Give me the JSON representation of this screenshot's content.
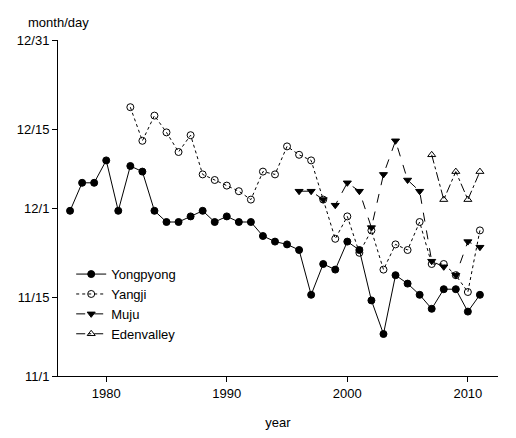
{
  "chart_data": {
    "type": "line",
    "y_label": "month/day",
    "x_label": "year",
    "xlim": [
      1976,
      2012.5
    ],
    "xticks": [
      1980,
      1990,
      2000,
      2010
    ],
    "ylim": [
      305,
      365
    ],
    "yticks": [
      {
        "value": 305,
        "label": "11/1"
      },
      {
        "value": 319,
        "label": "11/15"
      },
      {
        "value": 335,
        "label": "12/1"
      },
      {
        "value": 349,
        "label": "12/15"
      },
      {
        "value": 365,
        "label": "12/31"
      }
    ],
    "grid": false,
    "legend": "lower left",
    "series": [
      {
        "name": "Yongpyong",
        "color": "#000000",
        "marker": "circle",
        "line_style": "solid",
        "x": [
          1977,
          1978,
          1979,
          1980,
          1981,
          1982,
          1983,
          1984,
          1985,
          1986,
          1987,
          1988,
          1989,
          1990,
          1991,
          1992,
          1993,
          1994,
          1995,
          1996,
          1997,
          1998,
          1999,
          2000,
          2001,
          2002,
          2003,
          2004,
          2005,
          2006,
          2007,
          2008,
          2009,
          2010,
          2011
        ],
        "values": [
          334.5,
          339.5,
          339.5,
          343.5,
          334.5,
          342.5,
          341.5,
          334.5,
          332.5,
          332.5,
          333.5,
          334.5,
          332.5,
          333.5,
          332.5,
          332.5,
          330,
          329,
          328.5,
          327.5,
          319.5,
          325,
          324,
          329,
          327.5,
          318.5,
          312.5,
          323,
          321.5,
          319.5,
          317,
          320.5,
          320.5,
          316.5,
          319.5
        ]
      },
      {
        "name": "Yangji",
        "color": "#000000",
        "marker": "circle-open",
        "line_style": "dot",
        "x": [
          1982,
          1983,
          1984,
          1985,
          1986,
          1987,
          1988,
          1989,
          1990,
          1991,
          1992,
          1993,
          1994,
          1995,
          1996,
          1997,
          1998,
          1999,
          2000,
          2001,
          2002,
          2003,
          2004,
          2005,
          2006,
          2007,
          2008,
          2009,
          2010,
          2011
        ],
        "values": [
          353,
          347,
          351.5,
          348.5,
          345,
          348,
          341,
          340,
          339,
          338,
          336.5,
          341.5,
          341,
          346,
          344.5,
          343.5,
          336.5,
          329.5,
          333.5,
          327,
          331,
          324,
          328.5,
          327.5,
          332.5,
          325,
          325,
          323,
          320,
          331
        ]
      },
      {
        "name": "Muju",
        "color": "#000000",
        "marker": "triangle-down",
        "line_style": "dash",
        "x": [
          1996,
          1997,
          1998,
          1999,
          2000,
          2001,
          2002,
          2003,
          2004,
          2005,
          2006,
          2007,
          2008,
          2009,
          2010,
          2011
        ],
        "values": [
          338,
          338,
          336.5,
          335.5,
          339.5,
          338,
          331.5,
          341,
          347,
          340,
          338,
          325.5,
          324.5,
          323,
          329,
          328
        ]
      },
      {
        "name": "Edenvalley",
        "color": "#000000",
        "marker": "triangle-up-open",
        "line_style": "dashdot",
        "x": [
          2007,
          2008,
          2009,
          2010,
          2011
        ],
        "values": [
          344.5,
          336.5,
          341.5,
          336.5,
          341.5
        ]
      }
    ]
  }
}
